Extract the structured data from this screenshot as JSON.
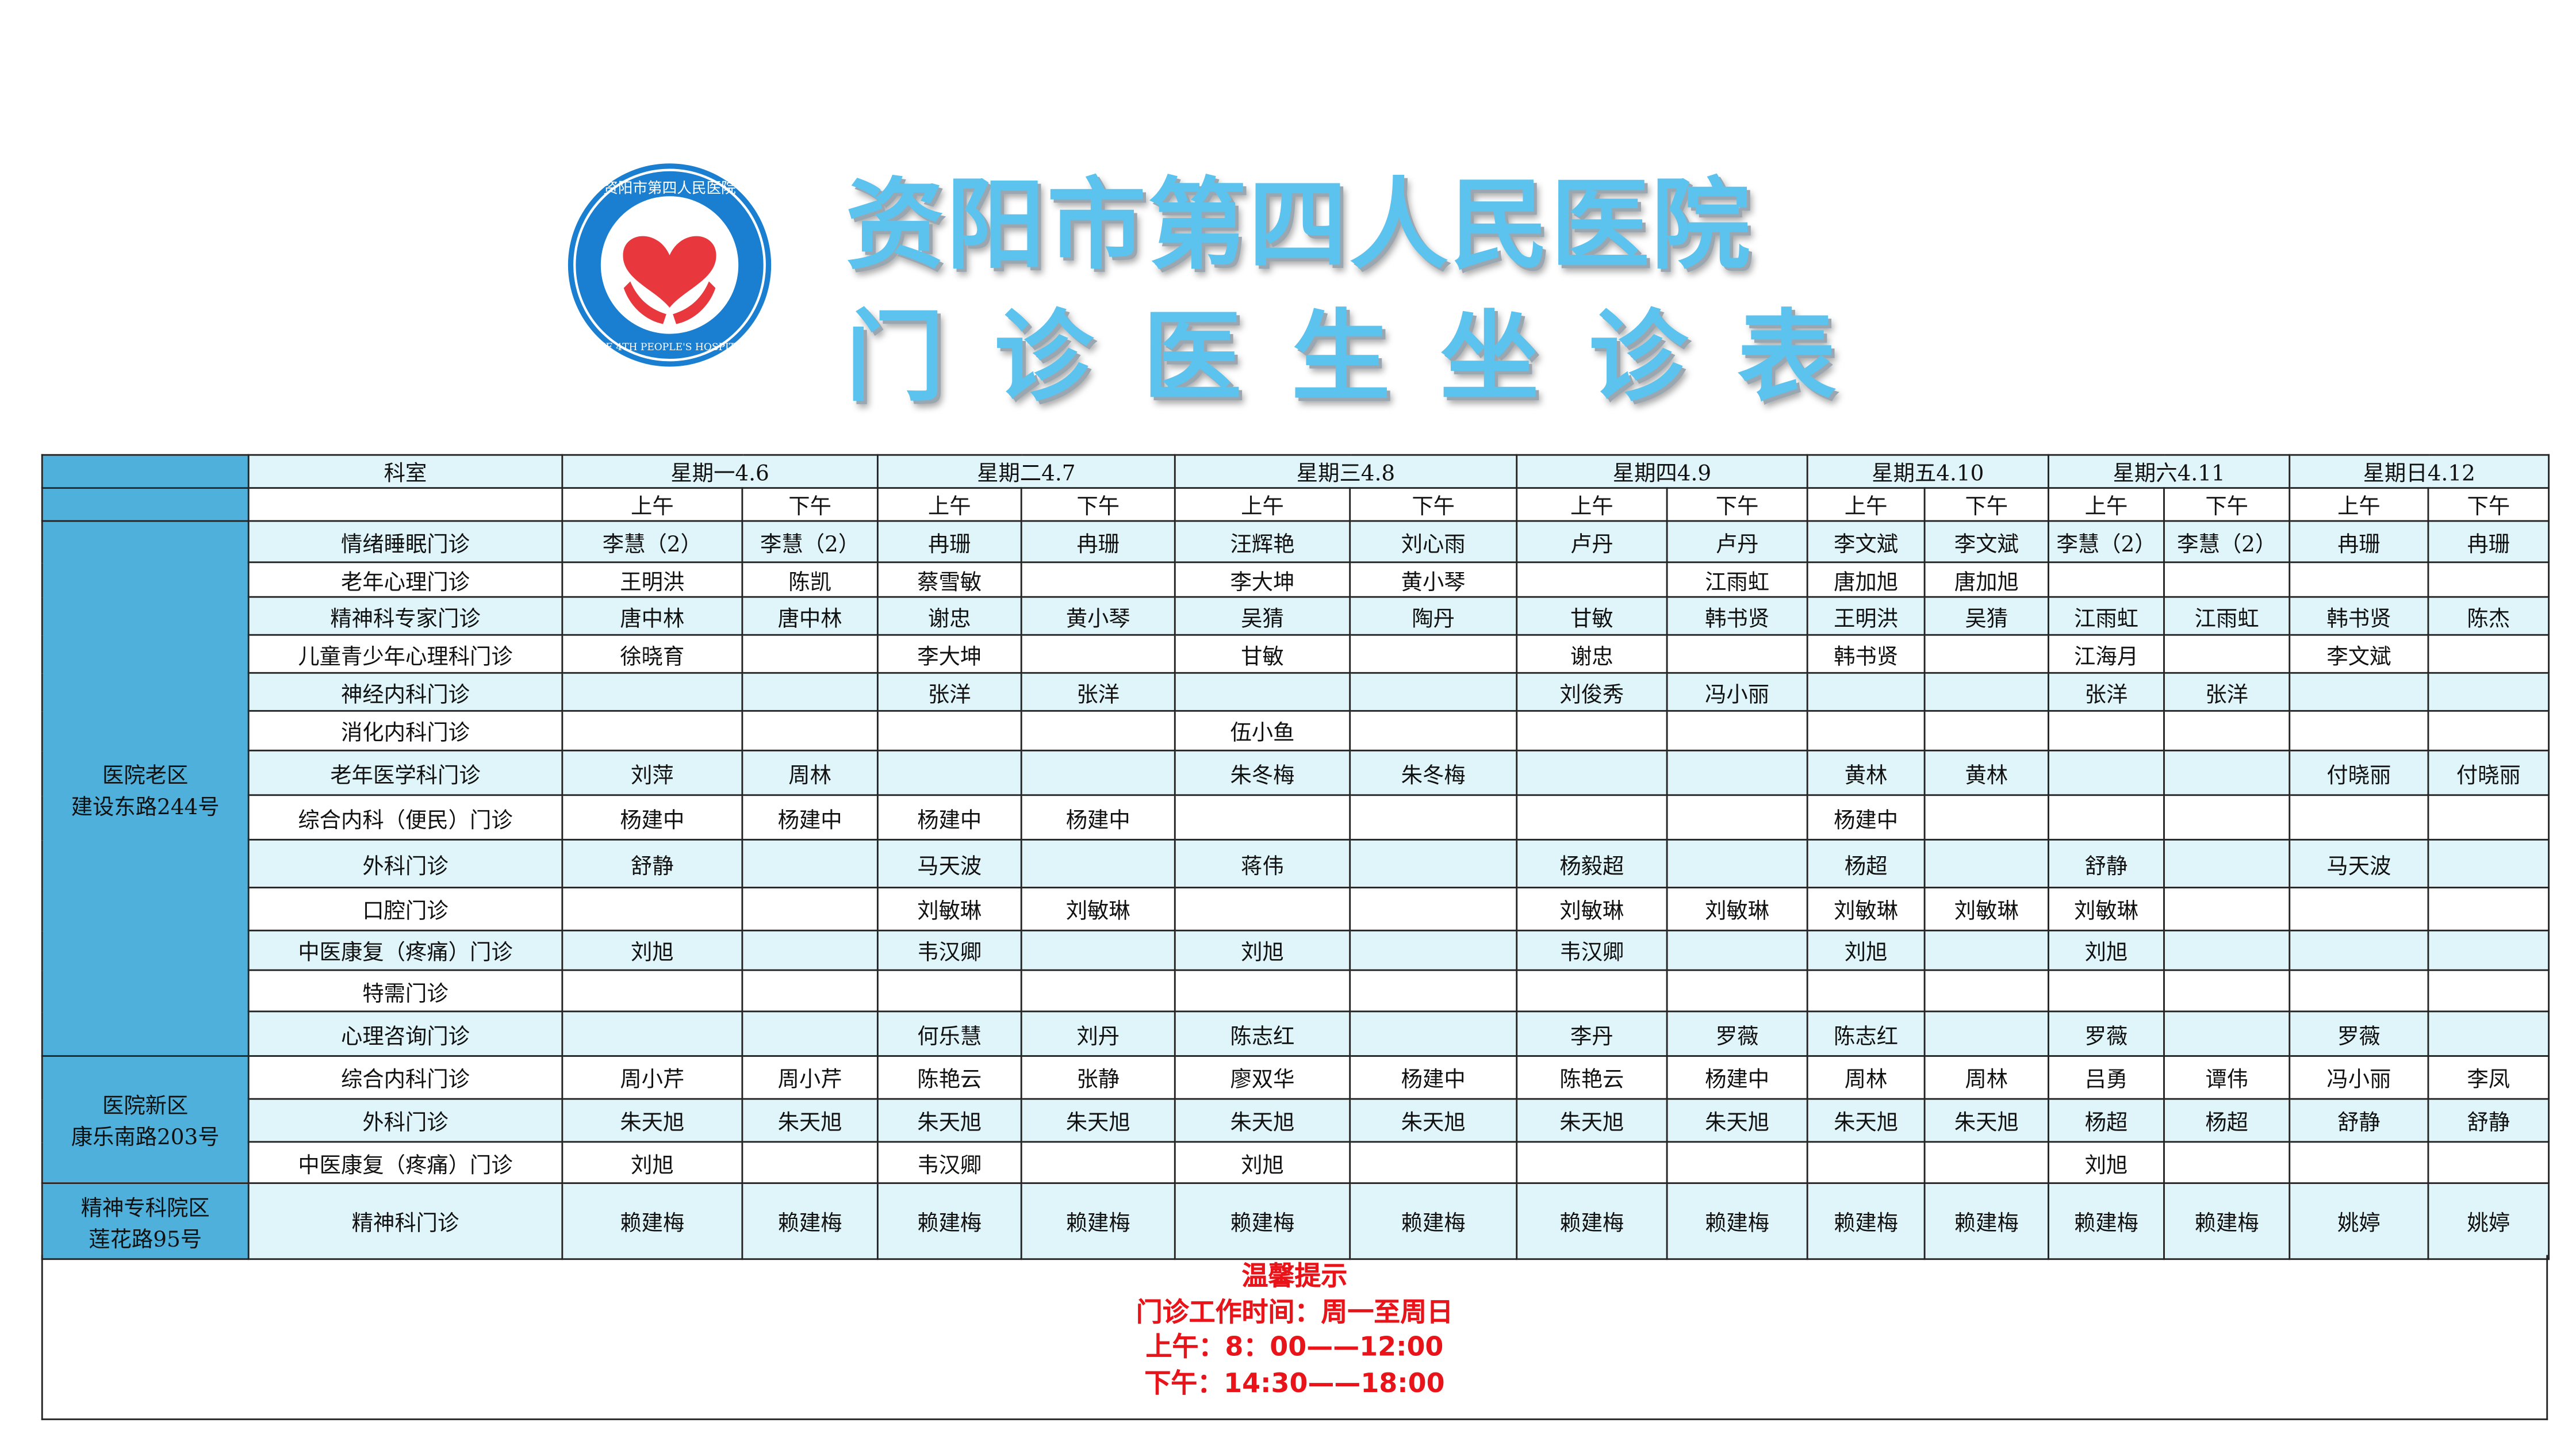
{
  "logo": {
    "text_cn": "资阳市第四人民医院",
    "text_en": "THE 4TH PEOPLE'S HOSPITAL OF ZIYANG",
    "colors": {
      "ring": "#1a7fd0",
      "heart": "#e8383d"
    }
  },
  "title": {
    "line1": "资阳市第四人民医院",
    "line2": "门诊医生坐诊表"
  },
  "colors": {
    "area_bg": "#4fb0dc",
    "row_tint": "#dff5f9",
    "notice": "#e8141a",
    "title": "#5cc2ee"
  },
  "header": {
    "dept_label": "科室",
    "days": [
      "星期一4.6",
      "星期二4.7",
      "星期三4.8",
      "星期四4.9",
      "星期五4.10",
      "星期六4.11",
      "星期日4.12"
    ],
    "am": "上午",
    "pm": "下午"
  },
  "areas": [
    {
      "name": "医院老区",
      "address": "建设东路244号",
      "rows": [
        {
          "dept": "情绪睡眠门诊",
          "cells": [
            "李慧（2）",
            "李慧（2）",
            "冉珊",
            "冉珊",
            "汪辉艳",
            "刘心雨",
            "卢丹",
            "卢丹",
            "李文斌",
            "李文斌",
            "李慧（2）",
            "李慧（2）",
            "冉珊",
            "冉珊"
          ]
        },
        {
          "dept": "老年心理门诊",
          "cells": [
            "王明洪",
            "陈凯",
            "蔡雪敏",
            "",
            "李大坤",
            "黄小琴",
            "",
            "江雨虹",
            "唐加旭",
            "唐加旭",
            "",
            "",
            "",
            ""
          ]
        },
        {
          "dept": "精神科专家门诊",
          "cells": [
            "唐中林",
            "唐中林",
            "谢忠",
            "黄小琴",
            "吴猜",
            "陶丹",
            "甘敏",
            "韩书贤",
            "王明洪",
            "吴猜",
            "江雨虹",
            "江雨虹",
            "韩书贤",
            "陈杰"
          ]
        },
        {
          "dept": "儿童青少年心理科门诊",
          "cells": [
            "徐晓育",
            "",
            "李大坤",
            "",
            "甘敏",
            "",
            "谢忠",
            "",
            "韩书贤",
            "",
            "江海月",
            "",
            "李文斌",
            ""
          ]
        },
        {
          "dept": "神经内科门诊",
          "cells": [
            "",
            "",
            "张洋",
            "张洋",
            "",
            "",
            "刘俊秀",
            "冯小丽",
            "",
            "",
            "张洋",
            "张洋",
            "",
            ""
          ]
        },
        {
          "dept": "消化内科门诊",
          "cells": [
            "",
            "",
            "",
            "",
            "伍小鱼",
            "",
            "",
            "",
            "",
            "",
            "",
            "",
            "",
            ""
          ]
        },
        {
          "dept": "老年医学科门诊",
          "cells": [
            "刘萍",
            "周林",
            "",
            "",
            "朱冬梅",
            "朱冬梅",
            "",
            "",
            "黄林",
            "黄林",
            "",
            "",
            "付晓丽",
            "付晓丽"
          ]
        },
        {
          "dept": "综合内科（便民）门诊",
          "cells": [
            "杨建中",
            "杨建中",
            "杨建中",
            "杨建中",
            "",
            "",
            "",
            "",
            "杨建中",
            "",
            "",
            "",
            "",
            ""
          ]
        },
        {
          "dept": "外科门诊",
          "cells": [
            "舒静",
            "",
            "马天波",
            "",
            "蒋伟",
            "",
            "杨毅超",
            "",
            "杨超",
            "",
            "舒静",
            "",
            "马天波",
            ""
          ]
        },
        {
          "dept": "口腔门诊",
          "cells": [
            "",
            "",
            "刘敏琳",
            "刘敏琳",
            "",
            "",
            "刘敏琳",
            "刘敏琳",
            "刘敏琳",
            "刘敏琳",
            "刘敏琳",
            "",
            "",
            ""
          ]
        },
        {
          "dept": "中医康复（疼痛）门诊",
          "cells": [
            "刘旭",
            "",
            "韦汉卿",
            "",
            "刘旭",
            "",
            "韦汉卿",
            "",
            "刘旭",
            "",
            "刘旭",
            "",
            "",
            ""
          ]
        },
        {
          "dept": "特需门诊",
          "cells": [
            "",
            "",
            "",
            "",
            "",
            "",
            "",
            "",
            "",
            "",
            "",
            "",
            "",
            ""
          ]
        },
        {
          "dept": "心理咨询门诊",
          "cells": [
            "",
            "",
            "何乐慧",
            "刘丹",
            "陈志红",
            "",
            "李丹",
            "罗薇",
            "陈志红",
            "",
            "罗薇",
            "",
            "罗薇",
            ""
          ]
        }
      ]
    },
    {
      "name": "医院新区",
      "address": "康乐南路203号",
      "rows": [
        {
          "dept": "综合内科门诊",
          "cells": [
            "周小芹",
            "周小芹",
            "陈艳云",
            "张静",
            "廖双华",
            "杨建中",
            "陈艳云",
            "杨建中",
            "周林",
            "周林",
            "吕勇",
            "谭伟",
            "冯小丽",
            "李凤"
          ]
        },
        {
          "dept": "外科门诊",
          "cells": [
            "朱天旭",
            "朱天旭",
            "朱天旭",
            "朱天旭",
            "朱天旭",
            "朱天旭",
            "朱天旭",
            "朱天旭",
            "朱天旭",
            "朱天旭",
            "杨超",
            "杨超",
            "舒静",
            "舒静"
          ]
        },
        {
          "dept": "中医康复（疼痛）门诊",
          "cells": [
            "刘旭",
            "",
            "韦汉卿",
            "",
            "刘旭",
            "",
            "",
            "",
            "",
            "",
            "刘旭",
            "",
            "",
            ""
          ]
        }
      ]
    },
    {
      "name": "精神专科院区",
      "address": "莲花路95号",
      "rows": [
        {
          "dept": "精神科门诊",
          "cells": [
            "赖建梅",
            "赖建梅",
            "赖建梅",
            "赖建梅",
            "赖建梅",
            "赖建梅",
            "赖建梅",
            "赖建梅",
            "赖建梅",
            "赖建梅",
            "赖建梅",
            "赖建梅",
            "姚婷",
            "姚婷"
          ]
        }
      ]
    }
  ],
  "notice": {
    "title": "温馨提示",
    "hours": "门诊工作时间：周一至周日",
    "am": "上午：8：00——12:00",
    "pm": "下午：14:30——18:00"
  }
}
